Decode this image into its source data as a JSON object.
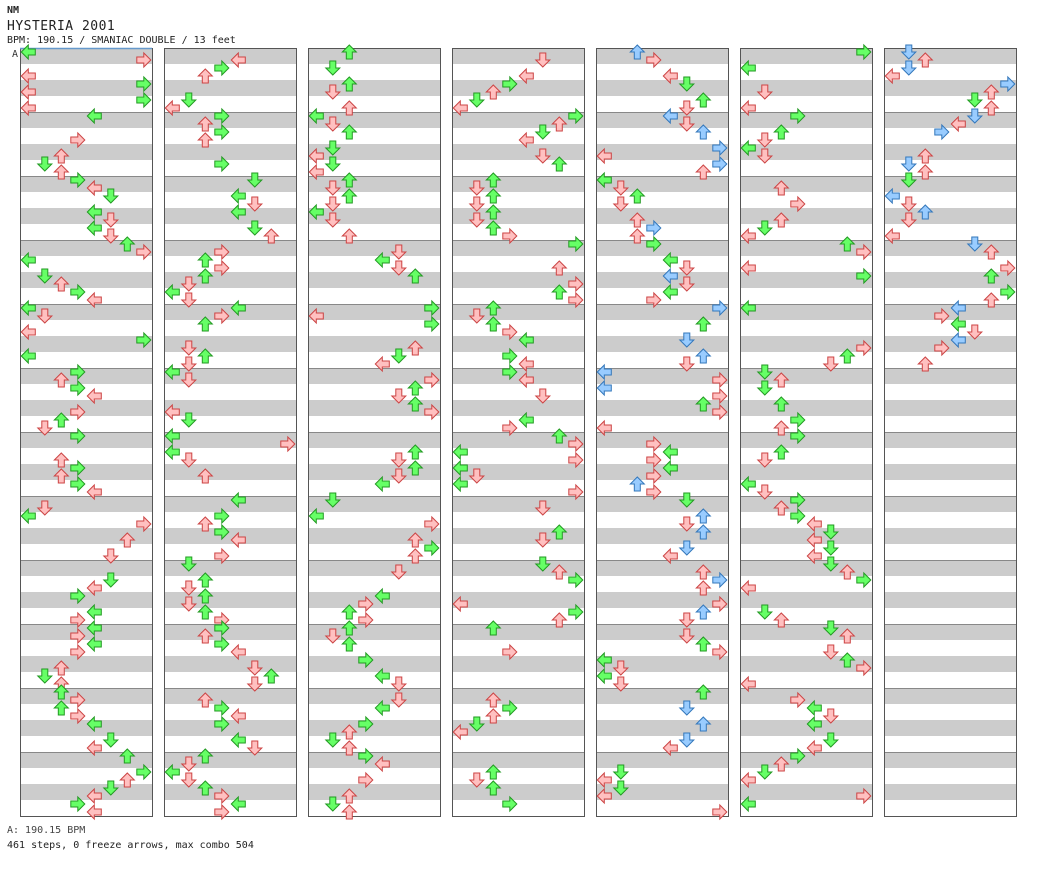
{
  "header": {
    "difficulty_badge": "NM",
    "title": "HYSTERIA 2001",
    "info": "BPM: 190.15 / SMANIAC DOUBLE / 13 feet"
  },
  "marker": {
    "label": "A"
  },
  "footer": {
    "bpm_line": "A: 190.15 BPM",
    "stats_line": "461 steps, 0 freeze arrows, max combo 504"
  },
  "colors": {
    "stripe": "#cccccc",
    "border": "#555555",
    "marker_line": "#6699cc",
    "red_fill": "#ffc0c0",
    "red_stroke": "#cc4444",
    "green_fill": "#66ff66",
    "green_stroke": "#229922",
    "blue_fill": "#99ccff",
    "blue_stroke": "#3377bb"
  },
  "chart_data": {
    "type": "step-chart",
    "style": "double",
    "lanes": [
      "P1-left",
      "P1-down",
      "P1-up",
      "P1-right",
      "P2-left",
      "P2-down",
      "P2-up",
      "P2-right"
    ],
    "measures": 77,
    "measures_per_column": 12,
    "total_steps": 461,
    "freeze_arrows": 0,
    "max_combo": 504,
    "bpm": 190.15
  }
}
